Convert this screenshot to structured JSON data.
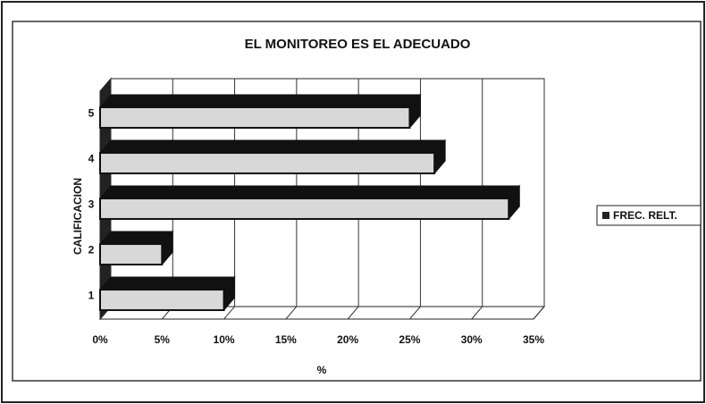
{
  "chart_data": {
    "type": "bar3d_horizontal",
    "title": "EL MONITOREO ES EL ADECUADO",
    "x_label": "%",
    "y_label": "CALIFICACION",
    "categories": [
      "1",
      "2",
      "3",
      "4",
      "5"
    ],
    "series": [
      {
        "name": "FREC. RELT.",
        "color": "#d8d8d8",
        "values": [
          10,
          5,
          33,
          27,
          25
        ]
      }
    ],
    "xlim": [
      0,
      35
    ],
    "xticks": [
      {
        "value": 0,
        "label": "0%"
      },
      {
        "value": 5,
        "label": "5%"
      },
      {
        "value": 10,
        "label": "10%"
      },
      {
        "value": 15,
        "label": "15%"
      },
      {
        "value": 20,
        "label": "20%"
      },
      {
        "value": 25,
        "label": "25%"
      },
      {
        "value": 30,
        "label": "30%"
      },
      {
        "value": 35,
        "label": "35%"
      }
    ],
    "grid": true,
    "legend": "right"
  }
}
